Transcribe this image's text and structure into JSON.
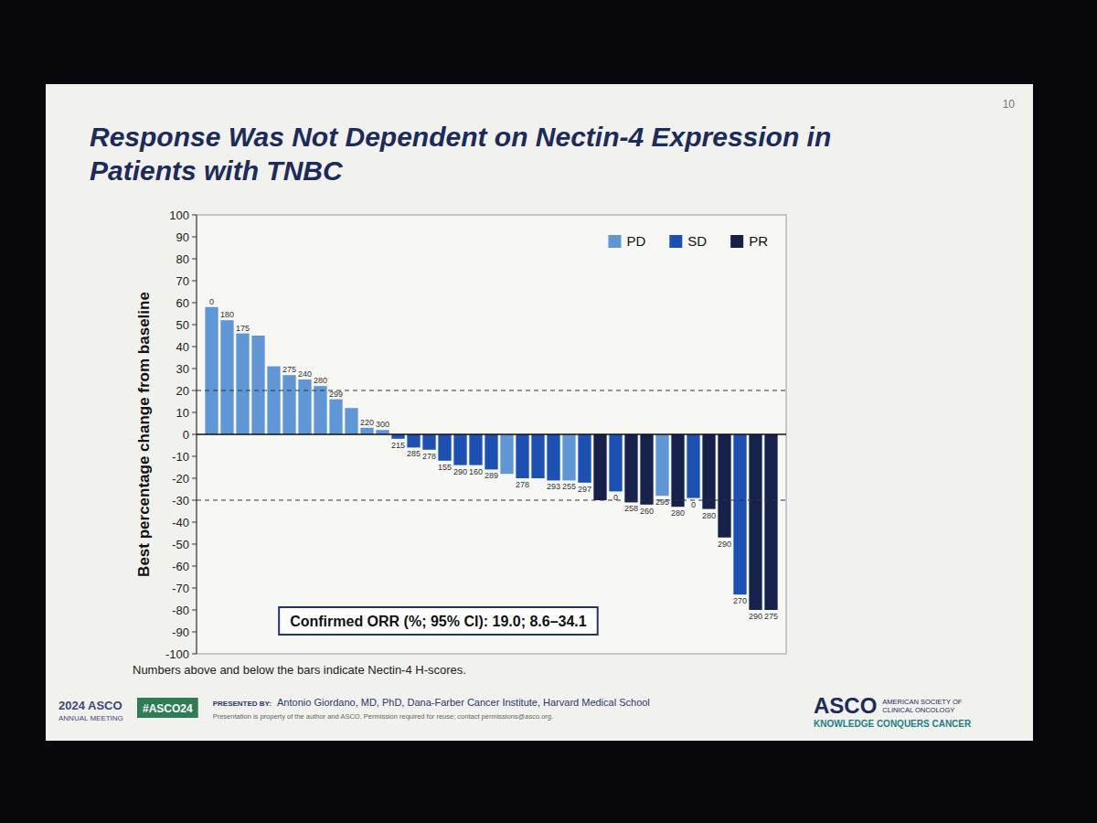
{
  "chart_data": {
    "type": "bar",
    "title": "Response Was Not Dependent on Nectin-4 Expression in Patients with TNBC",
    "y_label": "Best percentage change from baseline",
    "categories": [
      null,
      null,
      null,
      null,
      null,
      null,
      null,
      null,
      null,
      null,
      null,
      null,
      null,
      null,
      null,
      null,
      null,
      null,
      null,
      null,
      null,
      null,
      null,
      null,
      null,
      null,
      null,
      null,
      null,
      null,
      null,
      null,
      null,
      null,
      null,
      null,
      null
    ],
    "series": [
      {
        "name": "PD",
        "color": "#5f97d6",
        "values": [
          58,
          52,
          46,
          45,
          31,
          27,
          25,
          22,
          16,
          12,
          3,
          2,
          null,
          null,
          null,
          null,
          null,
          null,
          null,
          -18,
          null,
          null,
          null,
          -21,
          null,
          null,
          null,
          null,
          null,
          -28,
          null,
          null,
          null,
          null,
          null,
          null,
          null
        ]
      },
      {
        "name": "SD",
        "color": "#1c50b3",
        "values": [
          null,
          null,
          null,
          null,
          null,
          null,
          null,
          null,
          null,
          null,
          null,
          null,
          -2,
          -6,
          -7,
          -12,
          -14,
          -14,
          -16,
          null,
          -20,
          -20,
          -21,
          null,
          -22,
          null,
          -26,
          null,
          null,
          null,
          null,
          -29,
          null,
          null,
          -73,
          null,
          null
        ]
      },
      {
        "name": "PR",
        "color": "#16224c",
        "values": [
          null,
          null,
          null,
          null,
          null,
          null,
          null,
          null,
          null,
          null,
          null,
          null,
          null,
          null,
          null,
          null,
          null,
          null,
          null,
          null,
          null,
          null,
          null,
          null,
          null,
          -30,
          null,
          -31,
          -32,
          null,
          -33,
          null,
          -34,
          -47,
          null,
          -80,
          -80
        ]
      }
    ],
    "h_scores": [
      0,
      180,
      175,
      null,
      null,
      275,
      240,
      280,
      299,
      null,
      220,
      300,
      215,
      285,
      278,
      155,
      290,
      160,
      289,
      null,
      278,
      null,
      293,
      255,
      297,
      null,
      0,
      258,
      260,
      295,
      280,
      0,
      280,
      290,
      270,
      290,
      275
    ],
    "reference_lines": [
      20,
      -30
    ],
    "ylim": [
      -100,
      100
    ],
    "yticks": [
      -100,
      -90,
      -80,
      -70,
      -60,
      -50,
      -40,
      -30,
      -20,
      -10,
      0,
      10,
      20,
      30,
      40,
      50,
      60,
      70,
      80,
      90,
      100
    ],
    "grid": false,
    "legend": "top-right",
    "tick_labels": "y",
    "annotation": "Confirmed ORR (%; 95% CI): 19.0; 8.6–34.1",
    "footnote": "Numbers above and below the bars indicate Nectin-4 H-scores."
  },
  "slide": {
    "page_number": 10,
    "presented_by_label": "PRESENTED BY:",
    "presenter": "Antonio Giordano, MD, PhD, Dana-Farber Cancer Institute, Harvard Medical School",
    "copyright": "Presentation is property of the author and ASCO. Permission required for reuse; contact permissions@asco.org.",
    "hashtag": "#ASCO24",
    "meeting_logo": [
      "2024 ASCO",
      "ANNUAL MEETING"
    ],
    "society_logo": {
      "name": "ASCO",
      "full_name": [
        "AMERICAN SOCIETY OF",
        "CLINICAL ONCOLOGY"
      ],
      "tagline": "KNOWLEDGE CONQUERS CANCER"
    }
  }
}
